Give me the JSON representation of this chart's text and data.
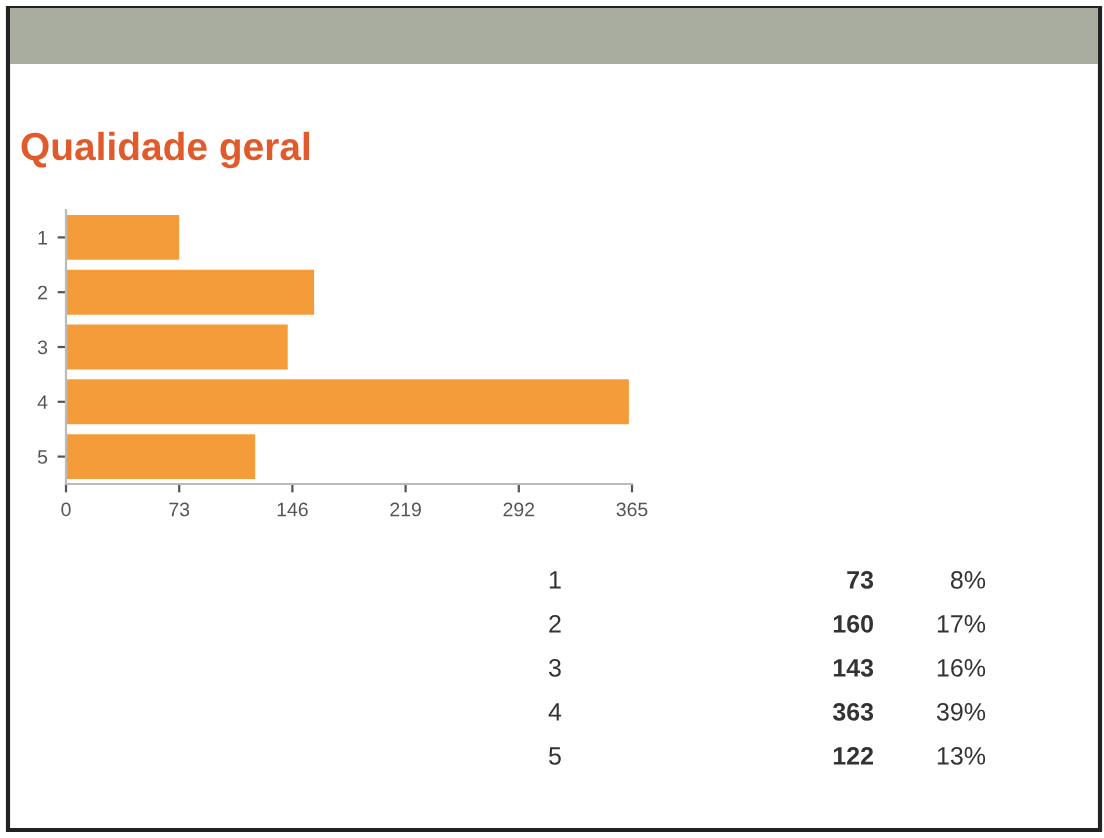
{
  "chart_data": {
    "type": "bar",
    "orientation": "horizontal",
    "title": "Qualidade geral",
    "categories": [
      "1",
      "2",
      "3",
      "4",
      "5"
    ],
    "values": [
      73,
      160,
      143,
      363,
      122
    ],
    "color": "#f49b3a",
    "xlim": [
      0,
      365
    ],
    "xticks": [
      0,
      73,
      146,
      219,
      292,
      365
    ],
    "grid": false,
    "legend": false,
    "annotations": [
      "1",
      "73",
      "8%",
      "2",
      "160",
      "17%",
      "3",
      "143",
      "16%",
      "4",
      "363",
      "39%",
      "5",
      "122",
      "13%"
    ]
  }
}
